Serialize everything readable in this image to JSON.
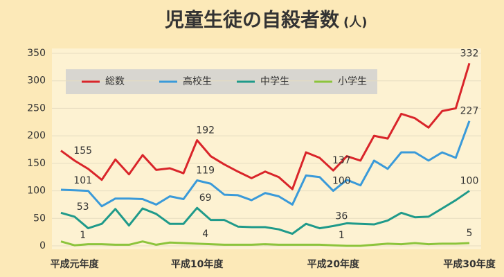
{
  "chart_data": {
    "type": "line",
    "title": "児童生徒の自殺者数",
    "unit_label": "(人)",
    "categories": [
      null,
      "平成元年度",
      null,
      null,
      null,
      null,
      null,
      null,
      null,
      null,
      "平成10年度",
      null,
      null,
      null,
      null,
      null,
      null,
      null,
      null,
      null,
      "平成20年度",
      null,
      null,
      null,
      null,
      null,
      null,
      null,
      null,
      null,
      "平成30年度"
    ],
    "series": [
      {
        "name": "総数",
        "color": "#d9252a",
        "values": [
          173,
          155,
          140,
          120,
          157,
          130,
          165,
          138,
          141,
          132,
          192,
          163,
          148,
          135,
          123,
          135,
          125,
          103,
          170,
          160,
          137,
          163,
          155,
          200,
          195,
          240,
          232,
          215,
          245,
          250,
          332
        ]
      },
      {
        "name": "高校生",
        "color": "#3a9ad9",
        "values": [
          102,
          101,
          100,
          72,
          86,
          86,
          85,
          75,
          90,
          85,
          119,
          113,
          93,
          92,
          83,
          96,
          90,
          75,
          128,
          125,
          100,
          120,
          110,
          155,
          140,
          170,
          170,
          155,
          170,
          160,
          227
        ]
      },
      {
        "name": "中学生",
        "color": "#1f9a8a",
        "values": [
          60,
          53,
          32,
          40,
          67,
          37,
          68,
          58,
          40,
          40,
          69,
          47,
          47,
          35,
          34,
          34,
          30,
          22,
          40,
          32,
          36,
          41,
          40,
          39,
          46,
          60,
          52,
          53,
          68,
          83,
          100
        ]
      },
      {
        "name": "小学生",
        "color": "#8cc43c",
        "values": [
          8,
          1,
          3,
          3,
          2,
          2,
          8,
          2,
          6,
          5,
          4,
          3,
          2,
          2,
          2,
          3,
          2,
          2,
          2,
          2,
          1,
          0,
          0,
          2,
          4,
          3,
          5,
          3,
          4,
          4,
          5
        ]
      }
    ],
    "labeled_indices": [
      1,
      10,
      20,
      30
    ],
    "ylim": [
      0,
      350
    ],
    "yticks": [
      0,
      50,
      100,
      150,
      200,
      250,
      300,
      350
    ],
    "grid": true
  }
}
